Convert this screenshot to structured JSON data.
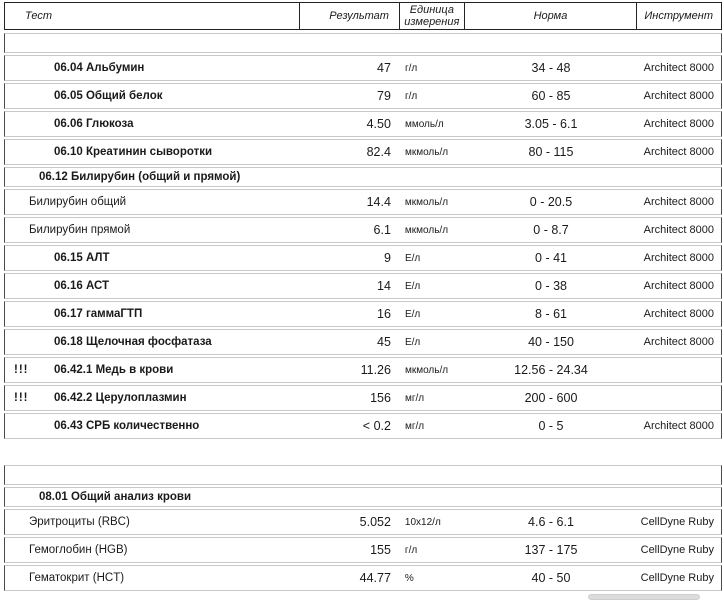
{
  "header": {
    "columns": {
      "test": "Тест",
      "result": "Результат",
      "unit": "Единица измерения",
      "norm": "Норма",
      "instrument": "Инструмент"
    }
  },
  "abnormal_marker": "!!!",
  "tables": [
    {
      "name": "biochemistry-panel",
      "rows": [
        {
          "type": "empty"
        },
        {
          "type": "test",
          "name": "06.04 Альбумин",
          "result": "47",
          "unit": "г/л",
          "norm": "34 - 48",
          "instrument": "Architect 8000"
        },
        {
          "type": "test",
          "name": "06.05 Общий белок",
          "result": "79",
          "unit": "г/л",
          "norm": "60 - 85",
          "instrument": "Architect 8000"
        },
        {
          "type": "test",
          "name": "06.06 Глюкоза",
          "result": "4.50",
          "unit": "ммоль/л",
          "norm": "3.05 - 6.1",
          "instrument": "Architect 8000"
        },
        {
          "type": "test",
          "name": "06.10 Креатинин сыворотки",
          "result": "82.4",
          "unit": "мкмоль/л",
          "norm": "80 - 115",
          "instrument": "Architect 8000"
        },
        {
          "type": "group",
          "name": "06.12 Билирубин (общий и прямой)"
        },
        {
          "type": "sub",
          "name": "Билирубин общий",
          "result": "14.4",
          "unit": "мкмоль/л",
          "norm": "0 - 20.5",
          "instrument": "Architect 8000"
        },
        {
          "type": "sub",
          "name": "Билирубин прямой",
          "result": "6.1",
          "unit": "мкмоль/л",
          "norm": "0 - 8.7",
          "instrument": "Architect 8000"
        },
        {
          "type": "test",
          "name": "06.15 АЛТ",
          "result": "9",
          "unit": "Е/л",
          "norm": "0 - 41",
          "instrument": "Architect 8000"
        },
        {
          "type": "test",
          "name": "06.16 АСТ",
          "result": "14",
          "unit": "Е/л",
          "norm": "0 - 38",
          "instrument": "Architect 8000"
        },
        {
          "type": "test",
          "name": "06.17 гаммаГТП",
          "result": "16",
          "unit": "Е/л",
          "norm": "8 - 61",
          "instrument": "Architect 8000"
        },
        {
          "type": "test",
          "name": "06.18 Щелочная фосфатаза",
          "result": "45",
          "unit": "Е/л",
          "norm": "40 - 150",
          "instrument": "Architect 8000"
        },
        {
          "type": "test",
          "marker": true,
          "name": "06.42.1 Медь в крови",
          "result": "11.26",
          "unit": "мкмоль/л",
          "norm": "12.56 - 24.34",
          "instrument": ""
        },
        {
          "type": "test",
          "marker": true,
          "name": "06.42.2 Церулоплазмин",
          "result": "156",
          "unit": "мг/л",
          "norm": "200 - 600",
          "instrument": ""
        },
        {
          "type": "test",
          "name": "06.43 СРБ количественно",
          "result": "< 0.2",
          "unit": "мг/л",
          "norm": "0 - 5",
          "instrument": "Architect 8000"
        }
      ]
    },
    {
      "name": "complete-blood-count",
      "rows": [
        {
          "type": "empty"
        },
        {
          "type": "group",
          "name": "08.01 Общий анализ крови"
        },
        {
          "type": "sub",
          "name": "Эритроциты (RBC)",
          "result": "5.052",
          "unit": "10x12/л",
          "norm": "4.6 - 6.1",
          "instrument": "CellDyne Ruby"
        },
        {
          "type": "sub",
          "name": "Гемоглобин (HGB)",
          "result": "155",
          "unit": "г/л",
          "norm": "137 - 175",
          "instrument": "CellDyne Ruby"
        },
        {
          "type": "sub",
          "name": "Гематокрит (HCT)",
          "result": "44.77",
          "unit": "%",
          "norm": "40 - 50",
          "instrument": "CellDyne Ruby"
        }
      ]
    }
  ],
  "colors": {
    "text": "#1a1a1a",
    "row_border": "#c9c9c9",
    "table_side_border": "#4a4a4a",
    "header_border": "#222222"
  }
}
